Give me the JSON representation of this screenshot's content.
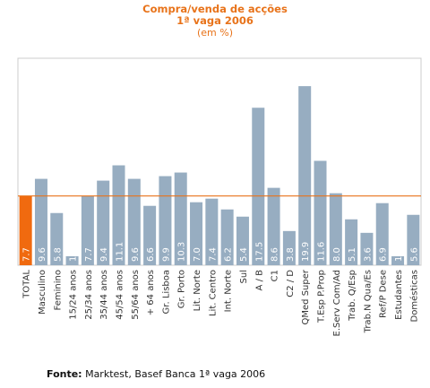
{
  "title": {
    "line1": "Compra/venda de acções",
    "line2": "1ª vaga 2006",
    "line3": "(em %)"
  },
  "footer": {
    "label": "Fonte:",
    "text": "Marktest, Basef Banca 1ª vaga 2006"
  },
  "colors": {
    "bar": "#97adc1",
    "highlight": "#f06a0f",
    "reference_line": "#e8731a",
    "title": "#e8731a"
  },
  "chart_data": {
    "type": "bar",
    "categories": [
      "TOTAL",
      "Masculino",
      "Feminino",
      "15/24 anos",
      "25/34 anos",
      "35/44 anos",
      "45/54 anos",
      "55/64 anos",
      "+ 64 anos",
      "Gr. Lisboa",
      "Gr. Porto",
      "Lit. Norte",
      "Lit. Centro",
      "Int. Norte",
      "Sul",
      "A / B",
      "C1",
      "C2 / D",
      "QMed Super",
      "T.Esp P.Prop",
      "E.Serv Com/Ad",
      "Trab. Q/Esp",
      "Trab.N Qua/Es",
      "Ref/P Dese",
      "Estudantes",
      "Domésticas"
    ],
    "values": [
      7.7,
      9.6,
      5.8,
      1.0,
      7.7,
      9.4,
      11.1,
      9.6,
      6.6,
      9.9,
      10.3,
      7.0,
      7.4,
      6.2,
      5.4,
      17.5,
      8.6,
      3.8,
      19.9,
      11.6,
      8.0,
      5.1,
      3.6,
      6.9,
      1.0,
      5.6
    ],
    "value_labels": [
      "7.7",
      "9.6",
      "5.8",
      "1.0",
      "7.7",
      "9.4",
      "11.1",
      "9.6",
      "6.6",
      "9.9",
      "10.3",
      "7.0",
      "7.4",
      "6.2",
      "5.4",
      "17.5",
      "8.6",
      "3.8",
      "19.9",
      "11.6",
      "8.0",
      "5.1",
      "3.6",
      "6.9",
      "1.0",
      "5.6"
    ],
    "highlight_index": 0,
    "reference_value": 7.7,
    "ylim": [
      0,
      23
    ],
    "grid": false
  }
}
